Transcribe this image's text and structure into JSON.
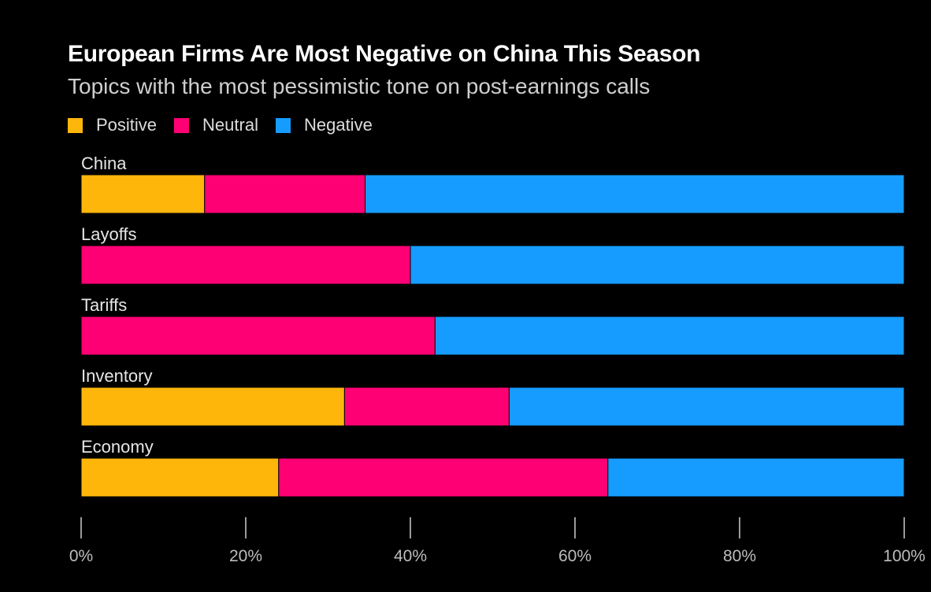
{
  "chart_data": {
    "type": "bar",
    "orientation": "horizontal",
    "stacked": true,
    "title": "European Firms Are Most Negative on China This Season",
    "subtitle": "Topics with the most pessimistic tone on post-earnings calls",
    "categories": [
      "China",
      "Layoffs",
      "Tariffs",
      "Inventory",
      "Economy"
    ],
    "series": [
      {
        "name": "Positive",
        "color": "#FFB60B",
        "values": [
          15,
          0,
          0,
          32,
          24
        ]
      },
      {
        "name": "Neutral",
        "color": "#FF0074",
        "values": [
          19.5,
          40,
          43,
          20,
          40
        ]
      },
      {
        "name": "Negative",
        "color": "#169CFF",
        "values": [
          65.5,
          60,
          57,
          48,
          36
        ]
      }
    ],
    "xlim": [
      0,
      100
    ],
    "xticks": [
      {
        "value": 0,
        "label": "0%"
      },
      {
        "value": 20,
        "label": "20%"
      },
      {
        "value": 40,
        "label": "40%"
      },
      {
        "value": 60,
        "label": "60%"
      },
      {
        "value": 80,
        "label": "80%"
      },
      {
        "value": 100,
        "label": "100%"
      }
    ],
    "legend_position": "top-left",
    "grid": false
  }
}
